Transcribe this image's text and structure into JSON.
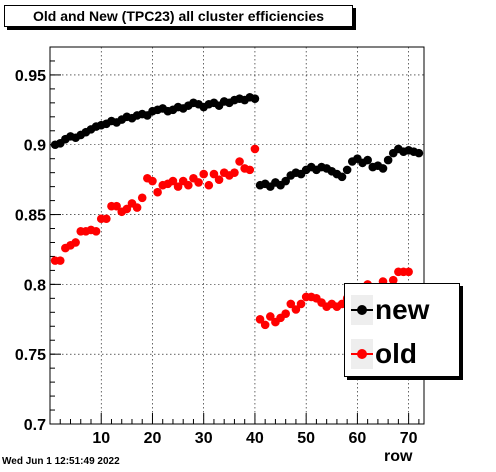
{
  "title": "Old and New (TPC23) all cluster efficiencies",
  "timestamp": "Wed Jun  1 12:51:49 2022",
  "chart_data": {
    "type": "scatter",
    "xlabel": "row",
    "ylabel": "",
    "xlim": [
      0,
      73
    ],
    "ylim": [
      0.7,
      0.97
    ],
    "xticks": [
      10,
      20,
      30,
      40,
      50,
      60,
      70
    ],
    "xtick_labels": [
      "10",
      "20",
      "30",
      "40",
      "50",
      "60",
      "70"
    ],
    "yticks": [
      0.75,
      0.8,
      0.85,
      0.9,
      0.95
    ],
    "ytick_labels": [
      "0.75",
      "0.8",
      "0.85",
      "0.9",
      "0.95"
    ],
    "grid": true,
    "legend_position": "right",
    "series": [
      {
        "name": "new",
        "color": "#000000",
        "x": [
          1,
          2,
          3,
          4,
          5,
          6,
          7,
          8,
          9,
          10,
          11,
          12,
          13,
          14,
          15,
          16,
          17,
          18,
          19,
          20,
          21,
          22,
          23,
          24,
          25,
          26,
          27,
          28,
          29,
          30,
          31,
          32,
          33,
          34,
          35,
          36,
          37,
          38,
          39,
          40,
          41,
          42,
          43,
          44,
          45,
          46,
          47,
          48,
          49,
          50,
          51,
          52,
          53,
          54,
          55,
          56,
          57,
          58,
          59,
          60,
          61,
          62,
          63,
          64,
          65,
          66,
          67,
          68,
          69,
          70,
          71,
          72
        ],
        "y": [
          0.9,
          0.901,
          0.904,
          0.906,
          0.905,
          0.907,
          0.909,
          0.911,
          0.913,
          0.914,
          0.915,
          0.917,
          0.916,
          0.918,
          0.92,
          0.919,
          0.921,
          0.922,
          0.921,
          0.924,
          0.925,
          0.926,
          0.924,
          0.925,
          0.927,
          0.926,
          0.928,
          0.93,
          0.929,
          0.927,
          0.929,
          0.93,
          0.928,
          0.931,
          0.93,
          0.932,
          0.933,
          0.932,
          0.934,
          0.933,
          0.871,
          0.872,
          0.87,
          0.873,
          0.871,
          0.874,
          0.878,
          0.88,
          0.879,
          0.882,
          0.884,
          0.882,
          0.884,
          0.883,
          0.881,
          0.879,
          0.877,
          0.882,
          0.888,
          0.89,
          0.887,
          0.889,
          0.884,
          0.885,
          0.883,
          0.889,
          0.894,
          0.897,
          0.895,
          0.896,
          0.895,
          0.894
        ]
      },
      {
        "name": "old",
        "color": "#ff0000",
        "x": [
          1,
          2,
          3,
          4,
          5,
          6,
          7,
          8,
          9,
          10,
          11,
          12,
          13,
          14,
          15,
          16,
          17,
          18,
          19,
          20,
          21,
          22,
          23,
          24,
          25,
          26,
          27,
          28,
          29,
          30,
          31,
          32,
          33,
          34,
          35,
          36,
          37,
          38,
          39,
          40,
          41,
          42,
          43,
          44,
          45,
          46,
          47,
          48,
          49,
          50,
          51,
          52,
          53,
          54,
          55,
          56,
          57,
          58,
          59,
          60,
          61,
          62,
          63,
          64,
          65,
          66,
          67,
          68,
          69,
          70,
          71,
          72
        ],
        "y": [
          0.817,
          0.817,
          0.826,
          0.828,
          0.83,
          0.838,
          0.838,
          0.839,
          0.838,
          0.847,
          0.847,
          0.856,
          0.856,
          0.852,
          0.854,
          0.858,
          0.855,
          0.862,
          0.876,
          0.874,
          0.866,
          0.871,
          0.872,
          0.874,
          0.87,
          0.874,
          0.871,
          0.876,
          0.873,
          0.879,
          0.871,
          0.879,
          0.875,
          0.88,
          0.878,
          0.88,
          0.888,
          0.883,
          0.882,
          0.897,
          0.775,
          0.771,
          0.777,
          0.773,
          0.776,
          0.779,
          0.786,
          0.782,
          0.786,
          0.791,
          0.791,
          0.79,
          0.787,
          0.784,
          0.786,
          0.784,
          0.786,
          0.79,
          0.797,
          0.797,
          0.796,
          0.8,
          0.795,
          0.797,
          0.802,
          0.798,
          0.803,
          0.809,
          0.809,
          0.809,
          0.773,
          0.767
        ]
      }
    ]
  }
}
